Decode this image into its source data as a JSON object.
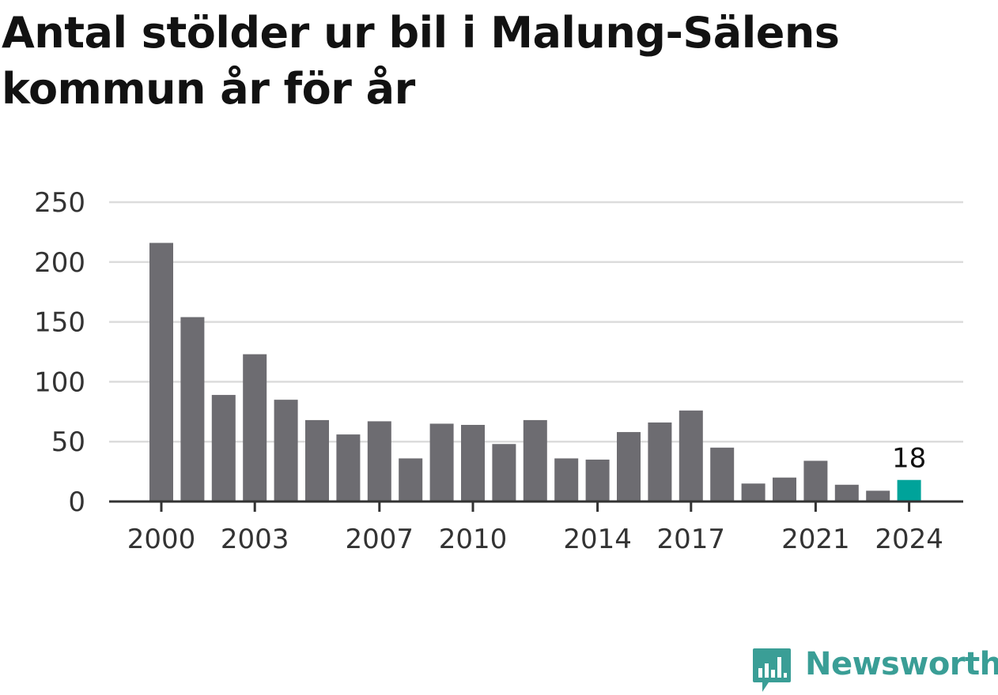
{
  "title": "Antal stölder ur bil i Malung-Sälens kommun år för år",
  "brand": {
    "name": "Newsworthy",
    "icon": "bar-chart-speech-bubble-icon",
    "color": "#3a9e96"
  },
  "colors": {
    "bar": "#6d6c71",
    "highlight": "#00a39a",
    "grid": "#dcdcdc",
    "axis": "#333333"
  },
  "chart_data": {
    "type": "bar",
    "title": "Antal stölder ur bil i Malung-Sälens kommun år för år",
    "xlabel": "",
    "ylabel": "",
    "categories": [
      2000,
      2001,
      2002,
      2003,
      2004,
      2005,
      2006,
      2007,
      2008,
      2009,
      2010,
      2011,
      2012,
      2013,
      2014,
      2015,
      2016,
      2017,
      2018,
      2019,
      2020,
      2021,
      2022,
      2023,
      2024
    ],
    "values": [
      216,
      154,
      89,
      123,
      85,
      68,
      56,
      67,
      36,
      65,
      64,
      48,
      68,
      36,
      35,
      58,
      66,
      76,
      45,
      15,
      20,
      34,
      14,
      9,
      18
    ],
    "ylim": [
      0,
      250
    ],
    "yticks": [
      0,
      50,
      100,
      150,
      200,
      250
    ],
    "xticks": [
      2000,
      2003,
      2007,
      2010,
      2014,
      2017,
      2021,
      2024
    ],
    "highlight": {
      "category": 2024,
      "label": "18"
    },
    "grid": true,
    "legend": "none"
  }
}
